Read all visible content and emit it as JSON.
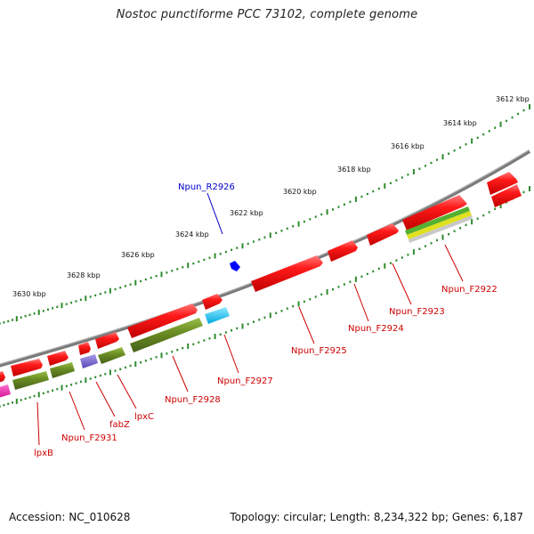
{
  "title": "Nostoc punctiforme PCC 73102, complete genome",
  "footer": {
    "accession": "Accession: NC_010628",
    "summary": "Topology: circular; Length: 8,234,322 bp; Genes: 6,187"
  },
  "scale_labels": [
    "3612 kbp",
    "3614 kbp",
    "3616 kbp",
    "3618 kbp",
    "3620 kbp",
    "3622 kbp",
    "3624 kbp",
    "3626 kbp",
    "3628 kbp",
    "3630 kbp"
  ],
  "gene_labels": [
    "Npun_R2926",
    "Npun_F2922",
    "Npun_F2923",
    "Npun_F2924",
    "Npun_F2925",
    "Npun_F2927",
    "Npun_F2928",
    "lpxC",
    "fabZ",
    "Npun_F2931",
    "lpxB"
  ],
  "colors": {
    "cds": "#ff0000",
    "gene_track": "#6b8e23",
    "trna": "#0000ff",
    "rrna": "#00bfff",
    "backbone": "#7a7a7a",
    "label_red": "#cc0000",
    "label_blue": "#0000cc"
  }
}
